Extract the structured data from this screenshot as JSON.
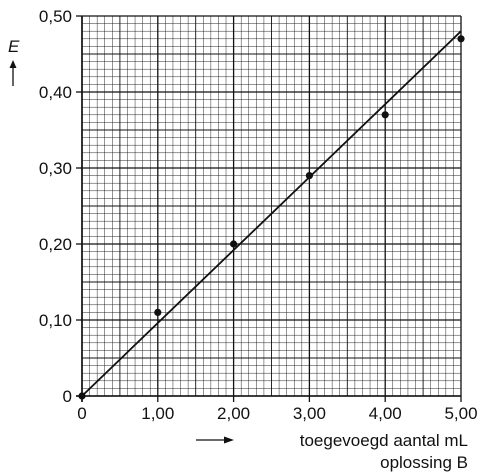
{
  "chart_data": {
    "type": "scatter",
    "title": "",
    "xlabel_line1": "toegevoegd aantal mL",
    "xlabel_line2": "oplossing B",
    "ylabel": "E",
    "xlim": [
      0,
      5
    ],
    "ylim": [
      0,
      0.5
    ],
    "grid": true,
    "grid_minor_step_x": 0.1,
    "grid_minor_step_y": 0.01,
    "x_ticks": [
      0,
      1,
      2,
      3,
      4,
      5
    ],
    "x_tick_labels": [
      "0",
      "1,00",
      "2,00",
      "3,00",
      "4,00",
      "5,00"
    ],
    "y_ticks": [
      0,
      0.1,
      0.2,
      0.3,
      0.4,
      0.5
    ],
    "y_tick_labels": [
      "0",
      "0,10",
      "0,20",
      "0,30",
      "0,40",
      "0,50"
    ],
    "points": [
      {
        "x": 0,
        "y": 0
      },
      {
        "x": 1.0,
        "y": 0.11
      },
      {
        "x": 2.0,
        "y": 0.2
      },
      {
        "x": 3.0,
        "y": 0.29
      },
      {
        "x": 4.0,
        "y": 0.37
      },
      {
        "x": 5.0,
        "y": 0.47
      }
    ],
    "fit_line": {
      "x0": 0,
      "y0": 0,
      "x1": 5.0,
      "y1": 0.48
    }
  },
  "colors": {
    "grid": "#111111",
    "axis": "#111111",
    "points": "#111111",
    "line": "#111111"
  }
}
